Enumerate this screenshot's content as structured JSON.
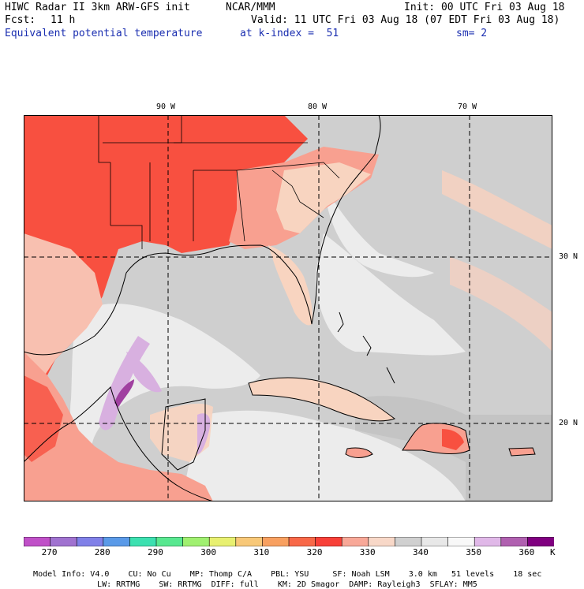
{
  "header": {
    "title": "HIWC Radar II 3km ARW-GFS init",
    "org": "NCAR/MMM",
    "init": "Init: 00 UTC Fri 03 Aug 18",
    "fcst_label": "Fcst:",
    "fcst_value": "11 h",
    "valid": "Valid: 11 UTC Fri 03 Aug 18 (07 EDT Fri 03 Aug 18)",
    "field": "Equivalent potential temperature",
    "level": "at k-index =  51",
    "smooth": "sm= 2"
  },
  "axes": {
    "lon_labels": [
      "90 W",
      "80 W",
      "70 W"
    ],
    "lat_labels": [
      "30 N",
      "20 N"
    ]
  },
  "colorbar": {
    "unit": "K",
    "tick_labels": [
      "270",
      "280",
      "290",
      "300",
      "310",
      "320",
      "330",
      "340",
      "350",
      "360"
    ],
    "colors": [
      "#c050c8",
      "#a072d0",
      "#8080e8",
      "#5a9ae8",
      "#3ce0b0",
      "#58e890",
      "#a0f070",
      "#e8f070",
      "#f8c878",
      "#f8a060",
      "#f86848",
      "#f84038",
      "#f8a898",
      "#f8d8c8",
      "#d0d0d0",
      "#e8e8e8",
      "#f8f8f8",
      "#e0b8e8",
      "#b060b0",
      "#800080"
    ]
  },
  "footer": {
    "line1": [
      "Model Info: V4.0",
      "CU: No Cu",
      "MP: Thomp C/A",
      "PBL: YSU",
      "SF: Noah LSM",
      "3.0 km",
      "51 levels",
      "18 sec"
    ],
    "line2": [
      "LW: RRTMG",
      "SW: RRTMG",
      "DIFF: full",
      "KM: 2D Smagor",
      "DAMP: Rayleigh3",
      "SFLAY: MM5"
    ]
  },
  "colors": {
    "warm_land": "#f85040",
    "mid_land": "#f8a090",
    "light_land": "#f8d4c0",
    "ocean_gray": "#cfcfcf",
    "ocean_light": "#ececec",
    "violet": "#d8b0e0",
    "purple": "#a040a0"
  }
}
